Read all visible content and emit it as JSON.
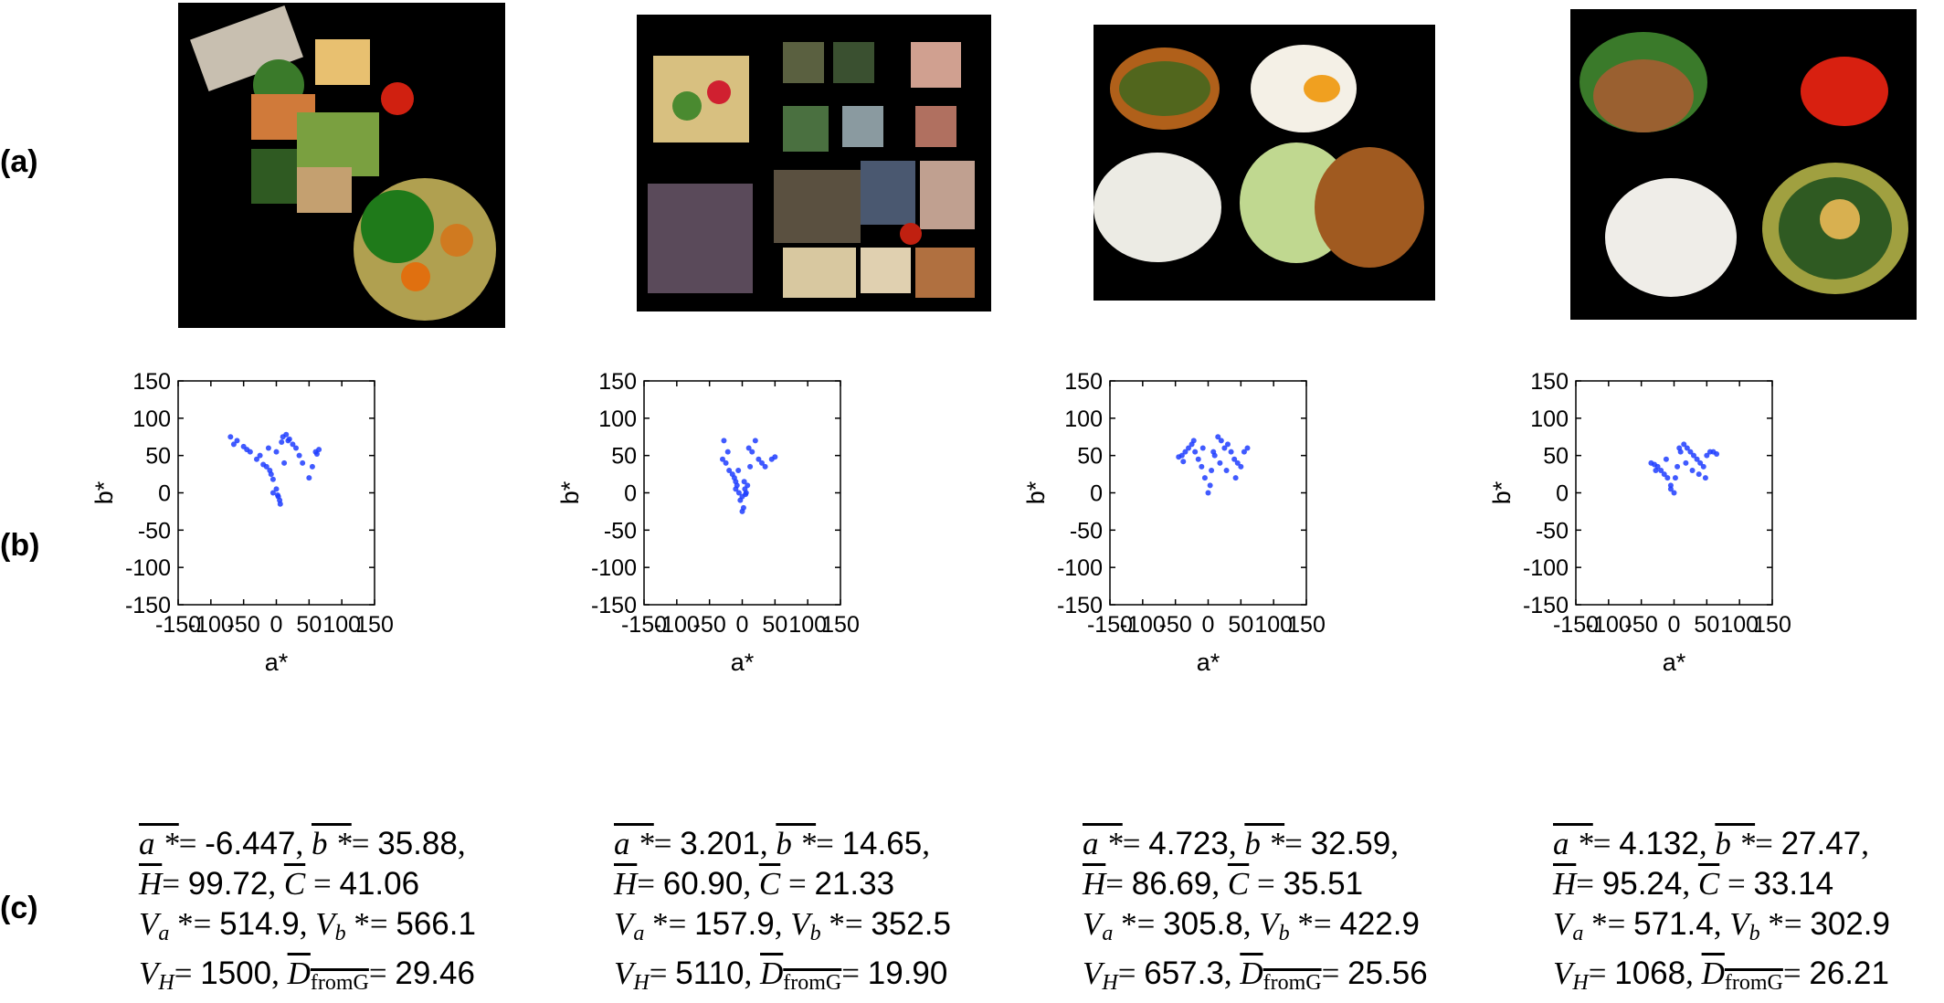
{
  "row_labels": {
    "a": "(a)",
    "b": "(b)",
    "c": "(c)"
  },
  "colors": {
    "scatter": "#1f3dff",
    "background": "#ffffff",
    "photo_bg": "#000000"
  },
  "chart_data": [
    {
      "type": "scatter",
      "xlabel": "a*",
      "ylabel": "b*",
      "xlim": [
        -150,
        150
      ],
      "ylim": [
        -150,
        150
      ],
      "xticks": [
        "-150",
        "-100",
        "-50",
        "0",
        "50",
        "100",
        "150"
      ],
      "yticks": [
        "150",
        "100",
        "50",
        "0",
        "-50",
        "-100",
        "-150"
      ],
      "grid": false,
      "x": [
        -70,
        -60,
        -50,
        -40,
        -30,
        -20,
        -15,
        -10,
        -5,
        0,
        3,
        5,
        10,
        15,
        20,
        25,
        30,
        40,
        50,
        60,
        65,
        -65,
        -45,
        -25,
        -12,
        0,
        8,
        18,
        35,
        55,
        62,
        -5,
        2,
        6,
        -8,
        12
      ],
      "y": [
        75,
        70,
        62,
        55,
        45,
        38,
        35,
        30,
        18,
        5,
        -5,
        -10,
        75,
        78,
        72,
        65,
        60,
        40,
        20,
        55,
        58,
        65,
        58,
        50,
        60,
        55,
        68,
        70,
        50,
        35,
        52,
        0,
        -3,
        -15,
        25,
        40
      ],
      "stats": {
        "a_mean": "-6.447",
        "b_mean": "35.88",
        "H_mean": "99.72",
        "C_mean": "41.06",
        "Va": "514.9",
        "Vb": "566.1",
        "VH": "1500",
        "D": "29.46"
      }
    },
    {
      "type": "scatter",
      "xlabel": "a*",
      "ylabel": "b*",
      "xlim": [
        -150,
        150
      ],
      "ylim": [
        -150,
        150
      ],
      "xticks": [
        "-150",
        "-100",
        "-50",
        "0",
        "50",
        "100",
        "150"
      ],
      "yticks": [
        "150",
        "100",
        "50",
        "0",
        "-50",
        "-100",
        "-150"
      ],
      "grid": false,
      "x": [
        -30,
        -28,
        -25,
        -20,
        -15,
        -12,
        -10,
        -8,
        -5,
        -3,
        0,
        2,
        4,
        6,
        8,
        10,
        15,
        20,
        25,
        30,
        35,
        45,
        50,
        -22,
        -6,
        0,
        3,
        12,
        -10,
        5
      ],
      "y": [
        45,
        70,
        40,
        30,
        25,
        20,
        15,
        10,
        0,
        -10,
        -25,
        -20,
        5,
        0,
        10,
        60,
        55,
        70,
        45,
        40,
        35,
        45,
        48,
        55,
        30,
        -5,
        15,
        35,
        5,
        -2
      ],
      "stats": {
        "a_mean": "3.201",
        "b_mean": "14.65",
        "H_mean": "60.90",
        "C_mean": "21.33",
        "Va": "157.9",
        "Vb": "352.5",
        "VH": "5110",
        "D": "19.90"
      }
    },
    {
      "type": "scatter",
      "xlabel": "a*",
      "ylabel": "b*",
      "xlim": [
        -150,
        150
      ],
      "ylim": [
        -150,
        150
      ],
      "xticks": [
        "-150",
        "-100",
        "-50",
        "0",
        "50",
        "100",
        "150"
      ],
      "yticks": [
        "150",
        "100",
        "50",
        "0",
        "-50",
        "-100",
        "-150"
      ],
      "grid": false,
      "x": [
        -45,
        -40,
        -35,
        -30,
        -25,
        -20,
        -15,
        -10,
        -5,
        0,
        5,
        10,
        15,
        20,
        25,
        30,
        35,
        40,
        45,
        50,
        55,
        60,
        -38,
        -22,
        -8,
        8,
        18,
        28,
        42,
        3
      ],
      "y": [
        48,
        50,
        55,
        60,
        65,
        55,
        45,
        35,
        20,
        0,
        30,
        50,
        75,
        70,
        60,
        65,
        55,
        45,
        40,
        35,
        55,
        60,
        42,
        70,
        60,
        55,
        40,
        30,
        20,
        10
      ],
      "stats": {
        "a_mean": "4.723",
        "b_mean": "32.59",
        "H_mean": "86.69",
        "C_mean": "35.51",
        "Va": "305.8",
        "Vb": "422.9",
        "VH": "657.3",
        "D": "25.56"
      }
    },
    {
      "type": "scatter",
      "xlabel": "a*",
      "ylabel": "b*",
      "xlim": [
        -150,
        150
      ],
      "ylim": [
        -150,
        150
      ],
      "xticks": [
        "-150",
        "-100",
        "-50",
        "0",
        "50",
        "100",
        "150"
      ],
      "yticks": [
        "150",
        "100",
        "50",
        "0",
        "-50",
        "-100",
        "-150"
      ],
      "grid": false,
      "x": [
        -35,
        -30,
        -25,
        -20,
        -15,
        -10,
        -5,
        0,
        5,
        10,
        15,
        20,
        25,
        30,
        35,
        40,
        45,
        50,
        55,
        60,
        65,
        -28,
        -12,
        2,
        8,
        18,
        28,
        38,
        48,
        -5
      ],
      "y": [
        40,
        38,
        35,
        30,
        25,
        20,
        10,
        0,
        35,
        55,
        65,
        60,
        55,
        50,
        45,
        40,
        35,
        50,
        55,
        55,
        52,
        30,
        45,
        20,
        60,
        40,
        30,
        25,
        20,
        5
      ],
      "stats": {
        "a_mean": "4.132",
        "b_mean": "27.47",
        "H_mean": "95.24",
        "C_mean": "33.14",
        "Va": "571.4",
        "Vb": "302.9",
        "VH": "1068",
        "D": "26.21"
      }
    }
  ]
}
